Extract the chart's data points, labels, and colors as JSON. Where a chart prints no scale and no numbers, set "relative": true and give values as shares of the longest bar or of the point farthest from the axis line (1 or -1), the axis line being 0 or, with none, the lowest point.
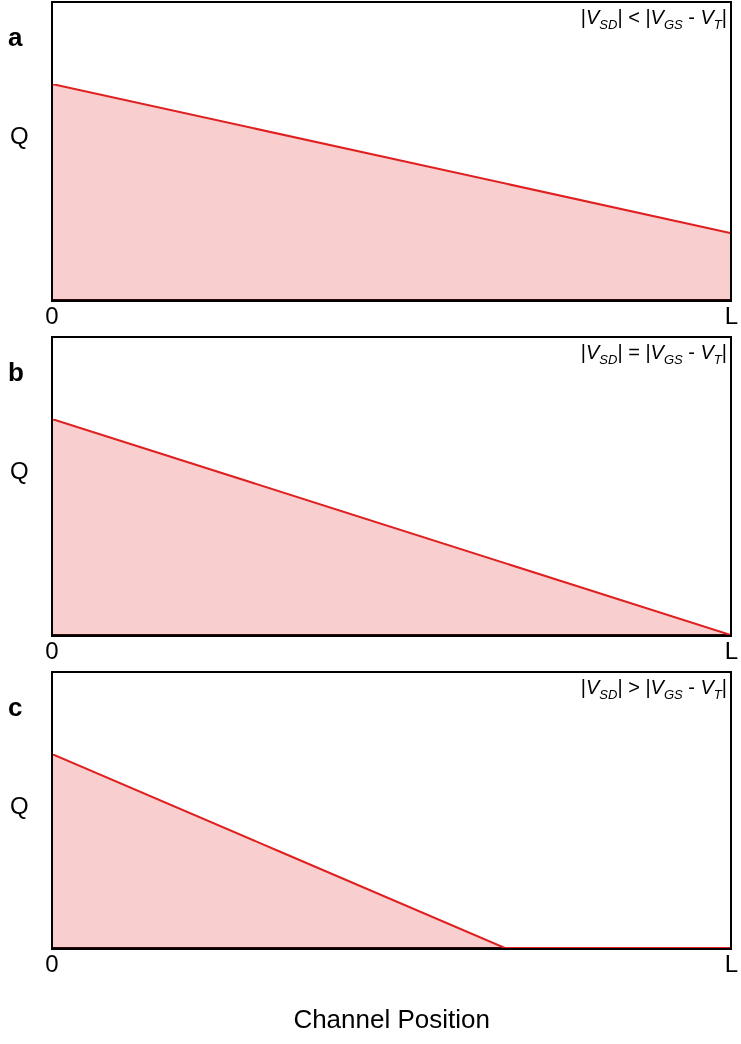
{
  "chart_data": [
    {
      "type": "area",
      "title": "a",
      "ylabel": "Q",
      "annotations": [
        "|V$_{SD}$| < |V$_{GS}$ - V$_{T}$|"
      ],
      "relative": true,
      "marker": "none",
      "categories": [
        "0",
        "L"
      ],
      "series": [
        {
          "color": "#e02020",
          "values": [
            1,
            0.31
          ]
        }
      ]
    },
    {
      "type": "area",
      "title": "b",
      "ylabel": "Q",
      "annotations": [
        "|V$_{SD}$| = |V$_{GS}$ - V$_{T}$|"
      ],
      "relative": true,
      "marker": "none",
      "categories": [
        "0",
        "L"
      ],
      "series": [
        {
          "color": "#e02020",
          "values": [
            1,
            0
          ]
        }
      ]
    },
    {
      "type": "area",
      "title": "c",
      "ylabel": "Q",
      "xlabel": "Channel Position",
      "annotations": [
        "|V$_{SD}$| > |V$_{GS}$ - V$_{T}$|"
      ],
      "relative": true,
      "marker": "none",
      "categories": [
        "0",
        null,
        null,
        "L"
      ],
      "series": [
        {
          "color": "#e02020",
          "values": [
            1,
            0.5,
            0,
            0
          ]
        }
      ]
    }
  ]
}
